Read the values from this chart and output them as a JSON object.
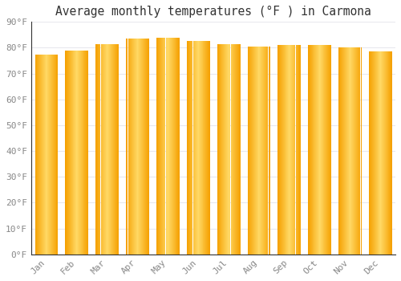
{
  "title": "Average monthly temperatures (°F ) in Carmona",
  "months": [
    "Jan",
    "Feb",
    "Mar",
    "Apr",
    "May",
    "Jun",
    "Jul",
    "Aug",
    "Sep",
    "Oct",
    "Nov",
    "Dec"
  ],
  "values": [
    77.5,
    79.0,
    81.5,
    83.5,
    84.0,
    82.5,
    81.5,
    80.5,
    81.0,
    81.0,
    80.0,
    78.5
  ],
  "bar_color_edge": "#F5A000",
  "bar_color_center": "#FFD966",
  "background_color": "#FFFFFF",
  "grid_color": "#E8E8EE",
  "text_color": "#888888",
  "ylim": [
    0,
    90
  ],
  "yticks": [
    0,
    10,
    20,
    30,
    40,
    50,
    60,
    70,
    80,
    90
  ],
  "ytick_labels": [
    "0°F",
    "10°F",
    "20°F",
    "30°F",
    "40°F",
    "50°F",
    "60°F",
    "70°F",
    "80°F",
    "90°F"
  ],
  "title_fontsize": 10.5,
  "tick_fontsize": 8,
  "font_family": "monospace",
  "bar_width": 0.75,
  "n_grad": 60
}
